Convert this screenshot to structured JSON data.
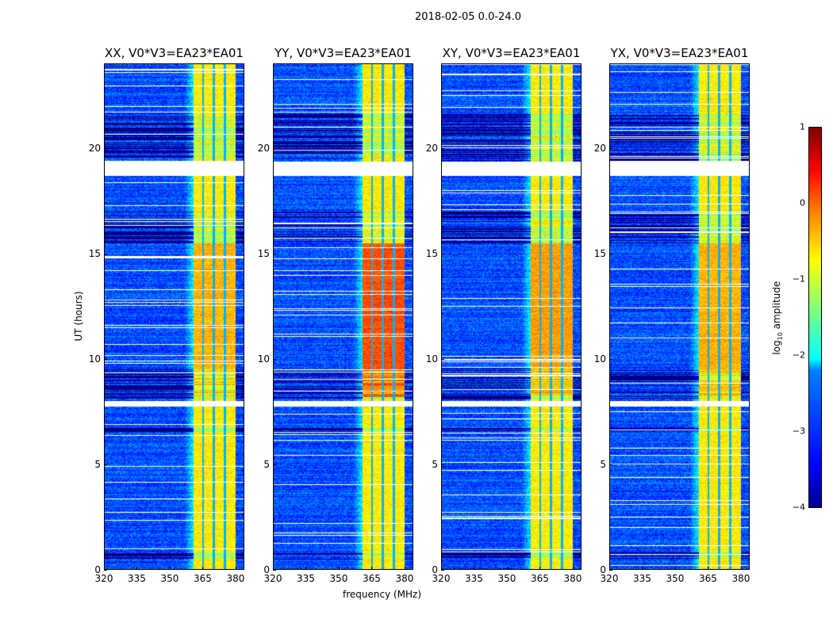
{
  "chart_data": {
    "type": "heatmap",
    "title": "2018-02-05 0.0-24.0",
    "xlabel": "frequency (MHz)",
    "ylabel": "UT (hours)",
    "xlim": [
      320,
      384
    ],
    "ylim": [
      0,
      24
    ],
    "xticks": [
      320,
      335,
      350,
      365,
      380
    ],
    "yticks": [
      0,
      5,
      10,
      15,
      20
    ],
    "panels": [
      {
        "title": "XX, V0*V3=EA23*EA01",
        "band_peak_log_amp": -0.4
      },
      {
        "title": "YY, V0*V3=EA23*EA01",
        "band_peak_log_amp": 0.1
      },
      {
        "title": "XY, V0*V3=EA23*EA01",
        "band_peak_log_amp": -0.3
      },
      {
        "title": "YX, V0*V3=EA23*EA01",
        "band_peak_log_amp": -0.4
      }
    ],
    "background_log_amp": -3.0,
    "band_mhz": [
      360.5,
      380
    ],
    "band_gaps_mhz": [
      365,
      370,
      375
    ],
    "flagged_hours": [
      [
        18.7,
        19.35
      ],
      [
        7.75,
        8.0
      ]
    ],
    "low_signal_hours": [
      [
        19.4,
        21.6
      ],
      [
        15.5,
        17.0
      ],
      [
        8.1,
        9.6
      ],
      [
        6.55,
        6.75
      ],
      [
        0.5,
        0.9
      ]
    ],
    "strong_hours": [
      [
        8.2,
        15.5
      ]
    ],
    "colorbar": {
      "label": "log10 amplitude",
      "label_base": "log",
      "label_sub": "10",
      "label_rest": " amplitude",
      "clim": [
        -4,
        1
      ],
      "ticks": [
        "−4",
        "−3",
        "−2",
        "−1",
        "0",
        "1"
      ],
      "colormap": "jet"
    }
  }
}
